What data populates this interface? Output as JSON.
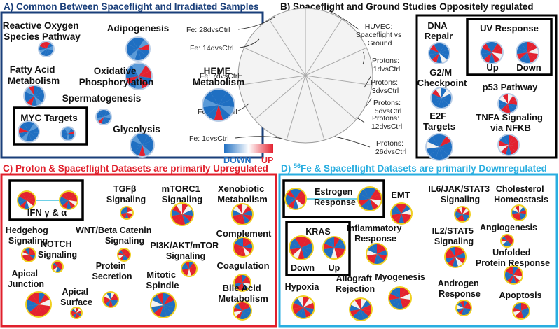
{
  "colors": {
    "panel_a_border": "#1a3f7a",
    "panel_b_border": "#000000",
    "panel_c_border": "#e0202c",
    "panel_d_border": "#29aee0",
    "down": "#1f6fc2",
    "up": "#e32230",
    "neutral": "#f2f2f2",
    "ring_yellow": "#f0d020",
    "ring_light": "#b9cde6"
  },
  "panels": {
    "a": {
      "title": "A) Common Between Spaceflight and Irradiated Samples",
      "labels": [
        {
          "text": [
            "Reactive Oxygen",
            "Species Pathway"
          ]
        },
        {
          "text": [
            "Adipogenesis"
          ]
        },
        {
          "text": [
            "Oxidative",
            "Phosphorylation"
          ]
        },
        {
          "text": [
            "Fatty Acid",
            "Metabolism"
          ]
        },
        {
          "text": [
            "HEME",
            "Metabolism"
          ]
        },
        {
          "text": [
            "Spermatogenesis"
          ]
        },
        {
          "text": [
            "MYC Targets"
          ]
        },
        {
          "text": [
            "Glycolysis"
          ]
        }
      ]
    },
    "b": {
      "title": "B) Spaceflight and Ground Studies Oppositely regulated",
      "axis_labels_left": [
        "Fe: 28dvsCtrl",
        "Fe: 14dvsCtrl",
        "Fe: 7dvsCtrl",
        "Fe: 3dvsCtrl",
        "Fe: 1dvsCtrl"
      ],
      "axis_labels_right": [
        [
          "HUVEC:",
          "Spaceflight vs",
          "Ground"
        ],
        [
          "Protons:",
          "1dvsCtrl"
        ],
        [
          "Protons:",
          "3dvsCtrl"
        ],
        [
          "Protons:",
          "5dvsCtrl"
        ],
        [
          "Protons:",
          "12dvsCtrl"
        ],
        [
          "Protons:",
          "26dvsCtrl"
        ]
      ],
      "legend": {
        "down": "DOWN",
        "up": "UP"
      },
      "labels": [
        {
          "text": [
            "DNA",
            "Repair"
          ]
        },
        {
          "text": [
            "UV Response"
          ]
        },
        {
          "text": [
            "Up"
          ]
        },
        {
          "text": [
            "Down"
          ]
        },
        {
          "text": [
            "G2/M",
            "Checkpoint"
          ]
        },
        {
          "text": [
            "p53 Pathway"
          ]
        },
        {
          "text": [
            "E2F",
            "Targets"
          ]
        },
        {
          "text": [
            "TNFA Signaling",
            "via NFKB"
          ]
        }
      ]
    },
    "c": {
      "title": "C) Proton & Spaceflight Datasets are primarily Upregulated",
      "labels": [
        {
          "text": [
            "IFN γ & α"
          ]
        },
        {
          "text": [
            "TGFβ",
            "Signaling"
          ]
        },
        {
          "text": [
            "mTORC1",
            "Signaling"
          ]
        },
        {
          "text": [
            "Xenobiotic",
            "Metabolism"
          ]
        },
        {
          "text": [
            "Hedgehog",
            "Signaling"
          ]
        },
        {
          "text": [
            "WNT/Beta Catenin",
            "Signaling"
          ]
        },
        {
          "text": [
            "NOTCH",
            "Signaling"
          ]
        },
        {
          "text": [
            "PI3K/AKT/mTOR",
            "Signaling"
          ]
        },
        {
          "text": [
            "Complement"
          ]
        },
        {
          "text": [
            "Coagulation"
          ]
        },
        {
          "text": [
            "Protein",
            "Secretion"
          ]
        },
        {
          "text": [
            "Mitotic",
            "Spindle"
          ]
        },
        {
          "text": [
            "Apical",
            "Junction"
          ]
        },
        {
          "text": [
            "Apical",
            "Surface"
          ]
        },
        {
          "text": [
            "Bile Acid",
            "Metabolism"
          ]
        }
      ]
    },
    "d": {
      "title_prefix": "D) ",
      "title_sup": "56",
      "title_rest": "Fe & Spaceflight Datasets are primarily Downregulated",
      "labels": [
        {
          "text": [
            "Estrogen",
            "Response"
          ]
        },
        {
          "text": [
            "EMT"
          ]
        },
        {
          "text": [
            "IL6/JAK/STAT3",
            "Signaling"
          ]
        },
        {
          "text": [
            "Cholesterol",
            "Homeostasis"
          ]
        },
        {
          "text": [
            "KRAS"
          ]
        },
        {
          "text": [
            "Inflammatory",
            "Response"
          ]
        },
        {
          "text": [
            "Angiogenesis"
          ]
        },
        {
          "text": [
            "IL2/STAT5",
            "Signaling"
          ]
        },
        {
          "text": [
            "Unfolded",
            "Protein Response"
          ]
        },
        {
          "text": [
            "Down"
          ]
        },
        {
          "text": [
            "Up"
          ]
        },
        {
          "text": [
            "Myogenesis"
          ]
        },
        {
          "text": [
            "Hypoxia"
          ]
        },
        {
          "text": [
            "Allograft",
            "Rejection"
          ]
        },
        {
          "text": [
            "Androgen",
            "Response"
          ]
        },
        {
          "text": [
            "Apoptosis"
          ]
        }
      ]
    }
  },
  "nodes": {
    "a": [
      {
        "name": "reactive-oxygen-species-pie",
        "up": 0.25,
        "ring": "light"
      },
      {
        "name": "adipogenesis-pie",
        "up": 0.1,
        "ring": "light"
      },
      {
        "name": "oxidative-phosphorylation-pie",
        "up": 0.45,
        "ring": "light"
      },
      {
        "name": "fatty-acid-metabolism-pie",
        "up": 0.15,
        "ring": "light"
      },
      {
        "name": "heme-metabolism-pie",
        "up": 0.08,
        "ring": "light"
      },
      {
        "name": "spermatogenesis-pie",
        "up": 0.1,
        "ring": "light"
      },
      {
        "name": "myc-targets-pie-1",
        "up": 0.05,
        "ring": "light"
      },
      {
        "name": "myc-targets-pie-2",
        "up": 0.05,
        "ring": "light"
      },
      {
        "name": "glycolysis-pie",
        "up": 0.12,
        "ring": "light"
      }
    ],
    "b": [
      {
        "name": "dna-repair-pie",
        "up": 0.2,
        "ring": "light"
      },
      {
        "name": "uv-response-up-pie",
        "up": 0.55,
        "ring": "light"
      },
      {
        "name": "uv-response-down-pie",
        "up": 0.5,
        "ring": "light"
      },
      {
        "name": "g2m-checkpoint-pie",
        "up": 0.15,
        "ring": "light"
      },
      {
        "name": "p53-pathway-pie",
        "up": 0.6,
        "ring": "light"
      },
      {
        "name": "e2f-targets-pie",
        "up": 0.1,
        "ring": "light"
      },
      {
        "name": "tnfa-signaling-pie",
        "up": 0.75,
        "ring": "light"
      }
    ],
    "c": [
      {
        "name": "ifn-pie-1",
        "up": 0.7,
        "ring": "yellow"
      },
      {
        "name": "ifn-pie-2",
        "up": 0.7,
        "ring": "yellow"
      },
      {
        "name": "tgfb-signaling-pie",
        "up": 0.65,
        "ring": "yellow"
      },
      {
        "name": "mtorc1-signaling-pie",
        "up": 0.7,
        "ring": "yellow"
      },
      {
        "name": "xenobiotic-metabolism-pie",
        "up": 0.7,
        "ring": "yellow"
      },
      {
        "name": "hedgehog-signaling-pie",
        "up": 0.7,
        "ring": "yellow"
      },
      {
        "name": "wnt-signaling-pie",
        "up": 0.7,
        "ring": "yellow"
      },
      {
        "name": "notch-signaling-pie",
        "up": 0.6,
        "ring": "yellow"
      },
      {
        "name": "pi3k-signaling-pie",
        "up": 0.7,
        "ring": "yellow"
      },
      {
        "name": "complement-pie",
        "up": 0.7,
        "ring": "yellow"
      },
      {
        "name": "coagulation-pie",
        "up": 0.7,
        "ring": "yellow"
      },
      {
        "name": "apical-junction-pie",
        "up": 0.7,
        "ring": "yellow"
      },
      {
        "name": "apical-surface-pie",
        "up": 0.6,
        "ring": "yellow"
      },
      {
        "name": "protein-secretion-pie",
        "up": 0.65,
        "ring": "yellow"
      },
      {
        "name": "mitotic-spindle-pie",
        "up": 0.3,
        "ring": "yellow"
      },
      {
        "name": "bile-acid-metabolism-pie",
        "up": 0.55,
        "ring": "yellow"
      }
    ],
    "d": [
      {
        "name": "estrogen-response-pie-1",
        "up": 0.45,
        "ring": "yellow"
      },
      {
        "name": "estrogen-response-pie-2",
        "up": 0.4,
        "ring": "yellow"
      },
      {
        "name": "emt-pie",
        "up": 0.5,
        "ring": "yellow"
      },
      {
        "name": "il6-jak-stat3-pie",
        "up": 0.55,
        "ring": "yellow"
      },
      {
        "name": "cholesterol-homeostasis-pie",
        "up": 0.6,
        "ring": "yellow"
      },
      {
        "name": "inflammatory-response-pie",
        "up": 0.55,
        "ring": "yellow"
      },
      {
        "name": "angiogenesis-pie",
        "up": 0.5,
        "ring": "yellow"
      },
      {
        "name": "kras-down-pie",
        "up": 0.45,
        "ring": "yellow"
      },
      {
        "name": "kras-up-pie",
        "up": 0.45,
        "ring": "yellow"
      },
      {
        "name": "il2-stat5-pie",
        "up": 0.6,
        "ring": "yellow"
      },
      {
        "name": "unfolded-protein-response-pie",
        "up": 0.5,
        "ring": "yellow"
      },
      {
        "name": "myogenesis-pie",
        "up": 0.45,
        "ring": "yellow"
      },
      {
        "name": "hypoxia-pie",
        "up": 0.55,
        "ring": "yellow"
      },
      {
        "name": "allograft-rejection-pie",
        "up": 0.5,
        "ring": "yellow"
      },
      {
        "name": "androgen-response-pie",
        "up": 0.45,
        "ring": "yellow"
      },
      {
        "name": "apoptosis-pie",
        "up": 0.55,
        "ring": "yellow"
      }
    ]
  }
}
